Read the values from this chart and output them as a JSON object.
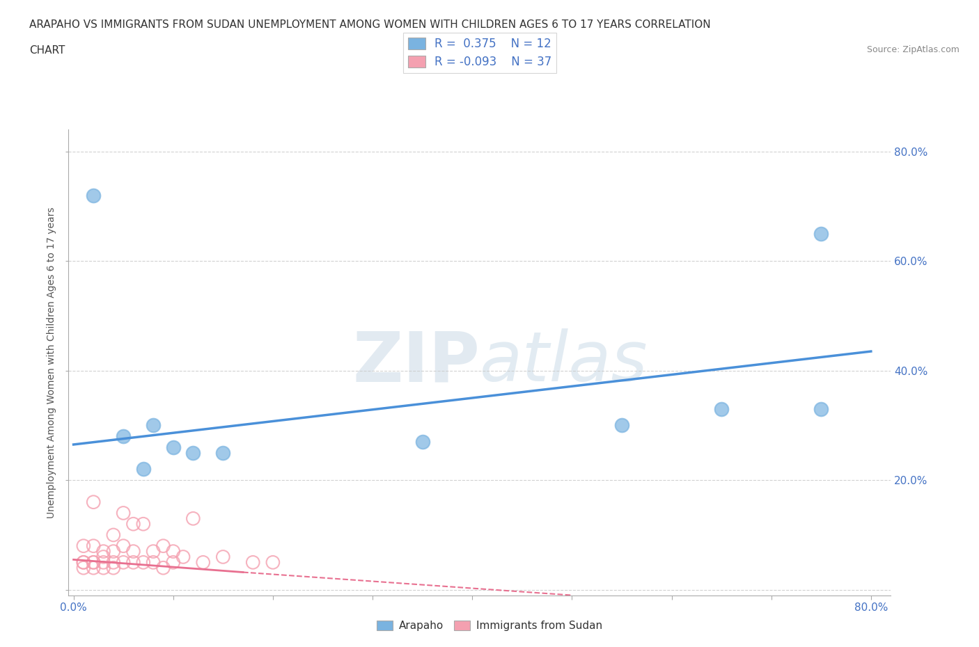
{
  "title_line1": "ARAPAHO VS IMMIGRANTS FROM SUDAN UNEMPLOYMENT AMONG WOMEN WITH CHILDREN AGES 6 TO 17 YEARS CORRELATION",
  "title_line2": "CHART",
  "source": "Source: ZipAtlas.com",
  "ylabel": "Unemployment Among Women with Children Ages 6 to 17 years",
  "xlim": [
    -0.005,
    0.82
  ],
  "ylim": [
    -0.01,
    0.84
  ],
  "xticks": [
    0.0,
    0.1,
    0.2,
    0.3,
    0.4,
    0.5,
    0.6,
    0.7,
    0.8
  ],
  "xtick_labels": [
    "0.0%",
    "",
    "",
    "",
    "",
    "",
    "",
    "",
    "80.0%"
  ],
  "yticks": [
    0.0,
    0.2,
    0.4,
    0.6,
    0.8
  ],
  "ytick_labels_right": [
    "",
    "20.0%",
    "40.0%",
    "60.0%",
    "80.0%"
  ],
  "arapaho_color": "#7ab3e0",
  "arapaho_line_color": "#4a90d9",
  "sudan_color": "#f4a0b0",
  "sudan_line_color": "#e87090",
  "arapaho_R": 0.375,
  "arapaho_N": 12,
  "sudan_R": -0.093,
  "sudan_N": 37,
  "arapaho_scatter_x": [
    0.02,
    0.05,
    0.07,
    0.08,
    0.1,
    0.12,
    0.15,
    0.35,
    0.55,
    0.65,
    0.75,
    0.75
  ],
  "arapaho_scatter_y": [
    0.72,
    0.28,
    0.22,
    0.3,
    0.26,
    0.25,
    0.25,
    0.27,
    0.3,
    0.33,
    0.65,
    0.33
  ],
  "sudan_scatter_x": [
    0.01,
    0.01,
    0.01,
    0.01,
    0.02,
    0.02,
    0.02,
    0.02,
    0.02,
    0.03,
    0.03,
    0.03,
    0.03,
    0.04,
    0.04,
    0.04,
    0.04,
    0.05,
    0.05,
    0.05,
    0.06,
    0.06,
    0.06,
    0.07,
    0.07,
    0.08,
    0.08,
    0.09,
    0.09,
    0.1,
    0.1,
    0.11,
    0.12,
    0.13,
    0.15,
    0.18,
    0.2
  ],
  "sudan_scatter_y": [
    0.05,
    0.08,
    0.05,
    0.04,
    0.08,
    0.16,
    0.05,
    0.04,
    0.05,
    0.07,
    0.05,
    0.04,
    0.06,
    0.1,
    0.07,
    0.05,
    0.04,
    0.14,
    0.08,
    0.05,
    0.12,
    0.07,
    0.05,
    0.12,
    0.05,
    0.07,
    0.05,
    0.08,
    0.04,
    0.07,
    0.05,
    0.06,
    0.13,
    0.05,
    0.06,
    0.05,
    0.05
  ],
  "arapaho_line_x": [
    0.0,
    0.8
  ],
  "arapaho_line_y": [
    0.265,
    0.435
  ],
  "sudan_solid_line_x": [
    0.0,
    0.17
  ],
  "sudan_solid_line_y": [
    0.055,
    0.032
  ],
  "sudan_dashed_line_x": [
    0.17,
    0.5
  ],
  "sudan_dashed_line_y": [
    0.032,
    -0.01
  ],
  "watermark_zip": "ZIP",
  "watermark_atlas": "atlas",
  "background_color": "#ffffff",
  "grid_color": "#cccccc",
  "legend_R_color": "#4472c4",
  "legend_N_color": "#333333",
  "tick_color": "#4472c4",
  "title_color": "#333333",
  "ylabel_color": "#555555",
  "source_color": "#888888"
}
